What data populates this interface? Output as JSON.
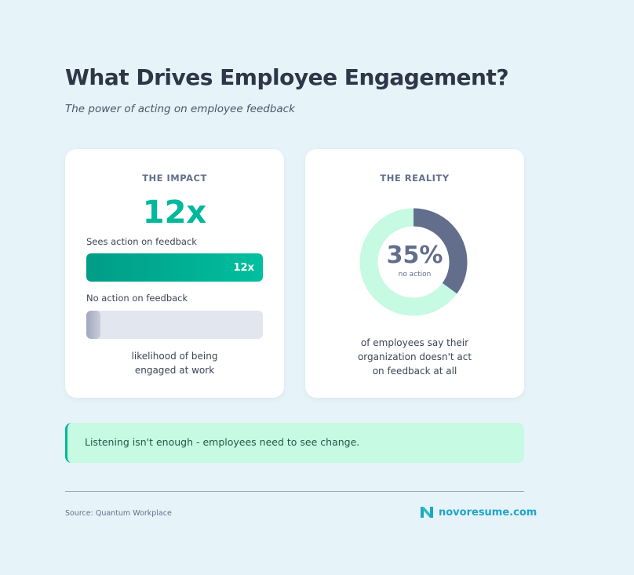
{
  "header": {
    "title": "What Drives Employee Engagement?",
    "subtitle": "The power of acting on employee feedback"
  },
  "impact": {
    "heading": "THE IMPACT",
    "big_value": "12x",
    "bars": [
      {
        "label": "Sees action on feedback",
        "value_label": "12x",
        "fill_percent": 100
      },
      {
        "label": "No action on feedback",
        "value_label": "",
        "fill_percent": 8
      }
    ],
    "caption_line1": "likelihood of being",
    "caption_line2": "engaged at work"
  },
  "reality": {
    "heading": "THE REALITY",
    "percent_label": "35%",
    "percent_value": 35,
    "sub_label": "no action",
    "caption_line1": "of employees say their",
    "caption_line2": "organization doesn't act",
    "caption_line3": "on feedback at all",
    "colors": {
      "highlight": "#636e8c",
      "rest": "#c6fae2"
    }
  },
  "callout": "Listening isn't enough - employees need to see change.",
  "footer": {
    "source": "Source: Quantum Workplace",
    "brand": "novoresume.com"
  }
}
